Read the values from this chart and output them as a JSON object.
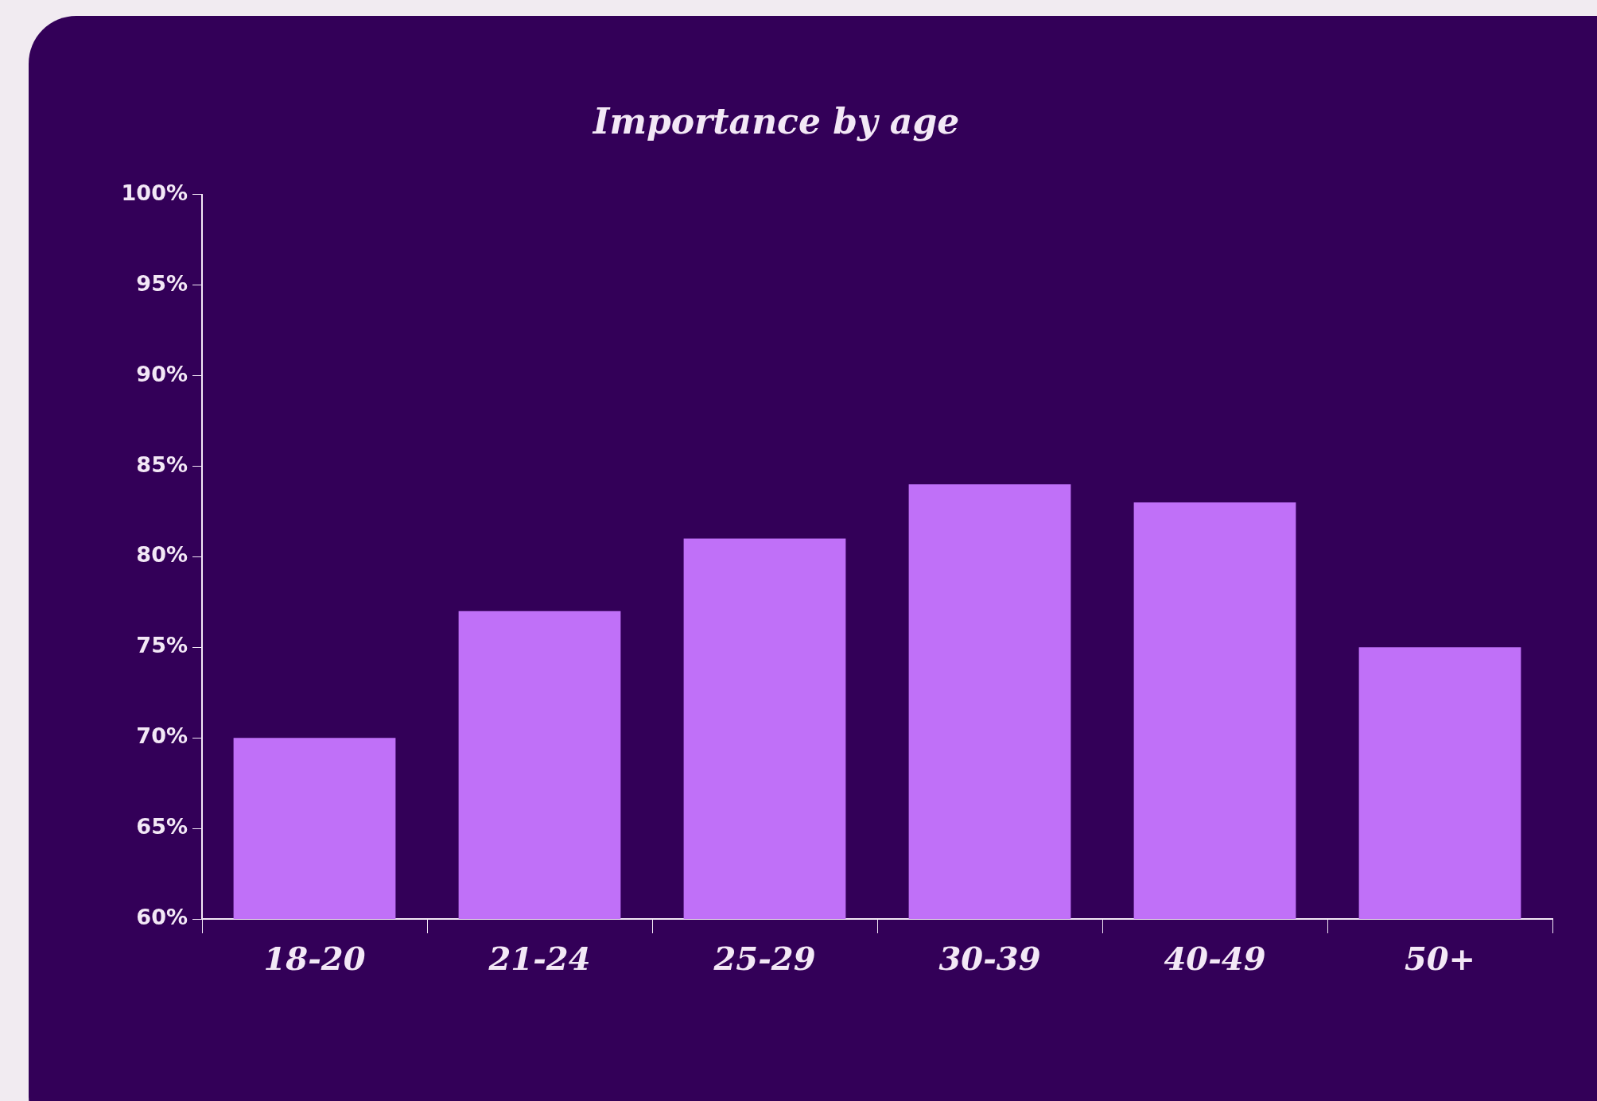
{
  "chart_data": {
    "type": "bar",
    "title": "Importance by age",
    "categories": [
      "18-20",
      "21-24",
      "25-29",
      "30-39",
      "40-49",
      "50+"
    ],
    "values": [
      70,
      77,
      81,
      84,
      83,
      75
    ],
    "color": "#c070f8",
    "ylim": [
      60,
      100
    ],
    "yticks": [
      {
        "value": 60,
        "label": "60%"
      },
      {
        "value": 65,
        "label": "65%"
      },
      {
        "value": 70,
        "label": "70%"
      },
      {
        "value": 75,
        "label": "75%"
      },
      {
        "value": 80,
        "label": "80%"
      },
      {
        "value": 85,
        "label": "85%"
      },
      {
        "value": 90,
        "label": "90%"
      },
      {
        "value": 95,
        "label": "95%"
      },
      {
        "value": 100,
        "label": "100%"
      }
    ],
    "legend": false
  }
}
